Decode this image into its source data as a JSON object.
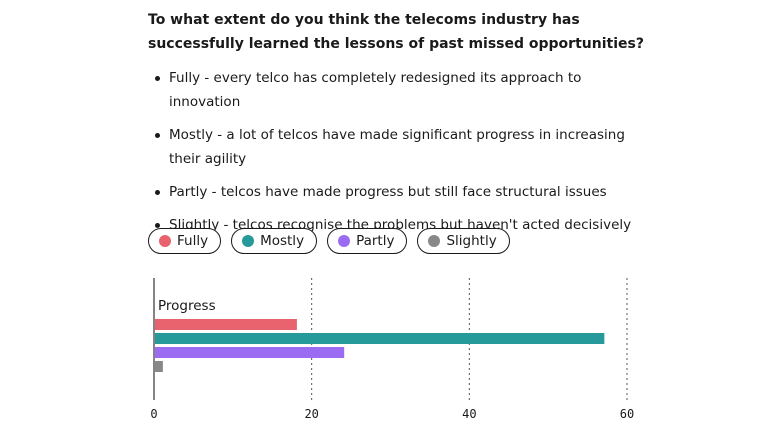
{
  "question": "To what extent do you think the telecoms industry has successfully learned the lessons of past missed opportunities?",
  "options": [
    "Fully - every telco has completely redesigned its approach to innovation",
    "Mostly - a lot of telcos have made significant progress in increasing their agility",
    "Partly - telcos have made progress but still face structural issues",
    "Slightly - telcos recognise the problems but haven't acted decisively"
  ],
  "legend": [
    {
      "label": "Fully",
      "color": "#e8636e"
    },
    {
      "label": "Mostly",
      "color": "#26999b"
    },
    {
      "label": "Partly",
      "color": "#9b6bf2"
    },
    {
      "label": "Slightly",
      "color": "#888888"
    }
  ],
  "chart_data": {
    "type": "bar",
    "orientation": "horizontal",
    "categories": [
      "Progress"
    ],
    "series": [
      {
        "name": "Fully",
        "values": [
          18
        ],
        "color": "#e8636e"
      },
      {
        "name": "Mostly",
        "values": [
          57
        ],
        "color": "#26999b"
      },
      {
        "name": "Partly",
        "values": [
          24
        ],
        "color": "#9b6bf2"
      },
      {
        "name": "Slightly",
        "values": [
          1
        ],
        "color": "#888888"
      }
    ],
    "xlim": [
      0,
      60
    ],
    "xticks": [
      "0",
      "20",
      "40",
      "60"
    ],
    "grid": true,
    "legend_placement": "top"
  }
}
